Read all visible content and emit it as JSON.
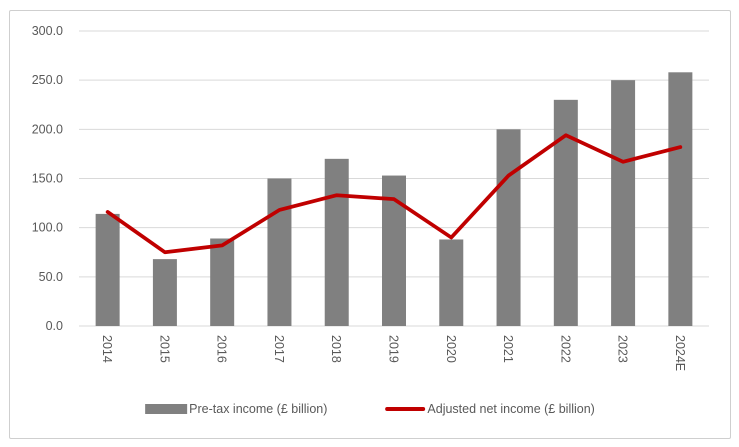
{
  "chart_data": {
    "type": "combo",
    "title": "",
    "xlabel": "",
    "ylabel": "",
    "categories": [
      "2014",
      "2015",
      "2016",
      "2017",
      "2018",
      "2019",
      "2020",
      "2021",
      "2022",
      "2023",
      "2024E"
    ],
    "series": [
      {
        "name": "Pre-tax income (£ billion)",
        "type": "bar",
        "color": "#808080",
        "values": [
          114,
          68,
          89,
          150,
          170,
          153,
          88,
          200,
          230,
          250,
          258
        ]
      },
      {
        "name": "Adjusted net income (£ billion)",
        "type": "line",
        "color": "#c00000",
        "values": [
          116,
          75,
          82,
          118,
          133,
          129,
          90,
          153,
          194,
          167,
          182
        ]
      }
    ],
    "ylim": [
      0,
      300
    ],
    "ytick_step": 50,
    "ytick_labels": [
      "0.0",
      "50.0",
      "100.0",
      "150.0",
      "200.0",
      "250.0",
      "300.0"
    ],
    "grid": true,
    "x_label_rotation_deg": 90,
    "legend_position": "bottom"
  },
  "colors": {
    "bar": "#808080",
    "line": "#c00000",
    "gridline": "#d9d9d9",
    "axis_text": "#595959",
    "frame_border": "#cfcfcf"
  }
}
